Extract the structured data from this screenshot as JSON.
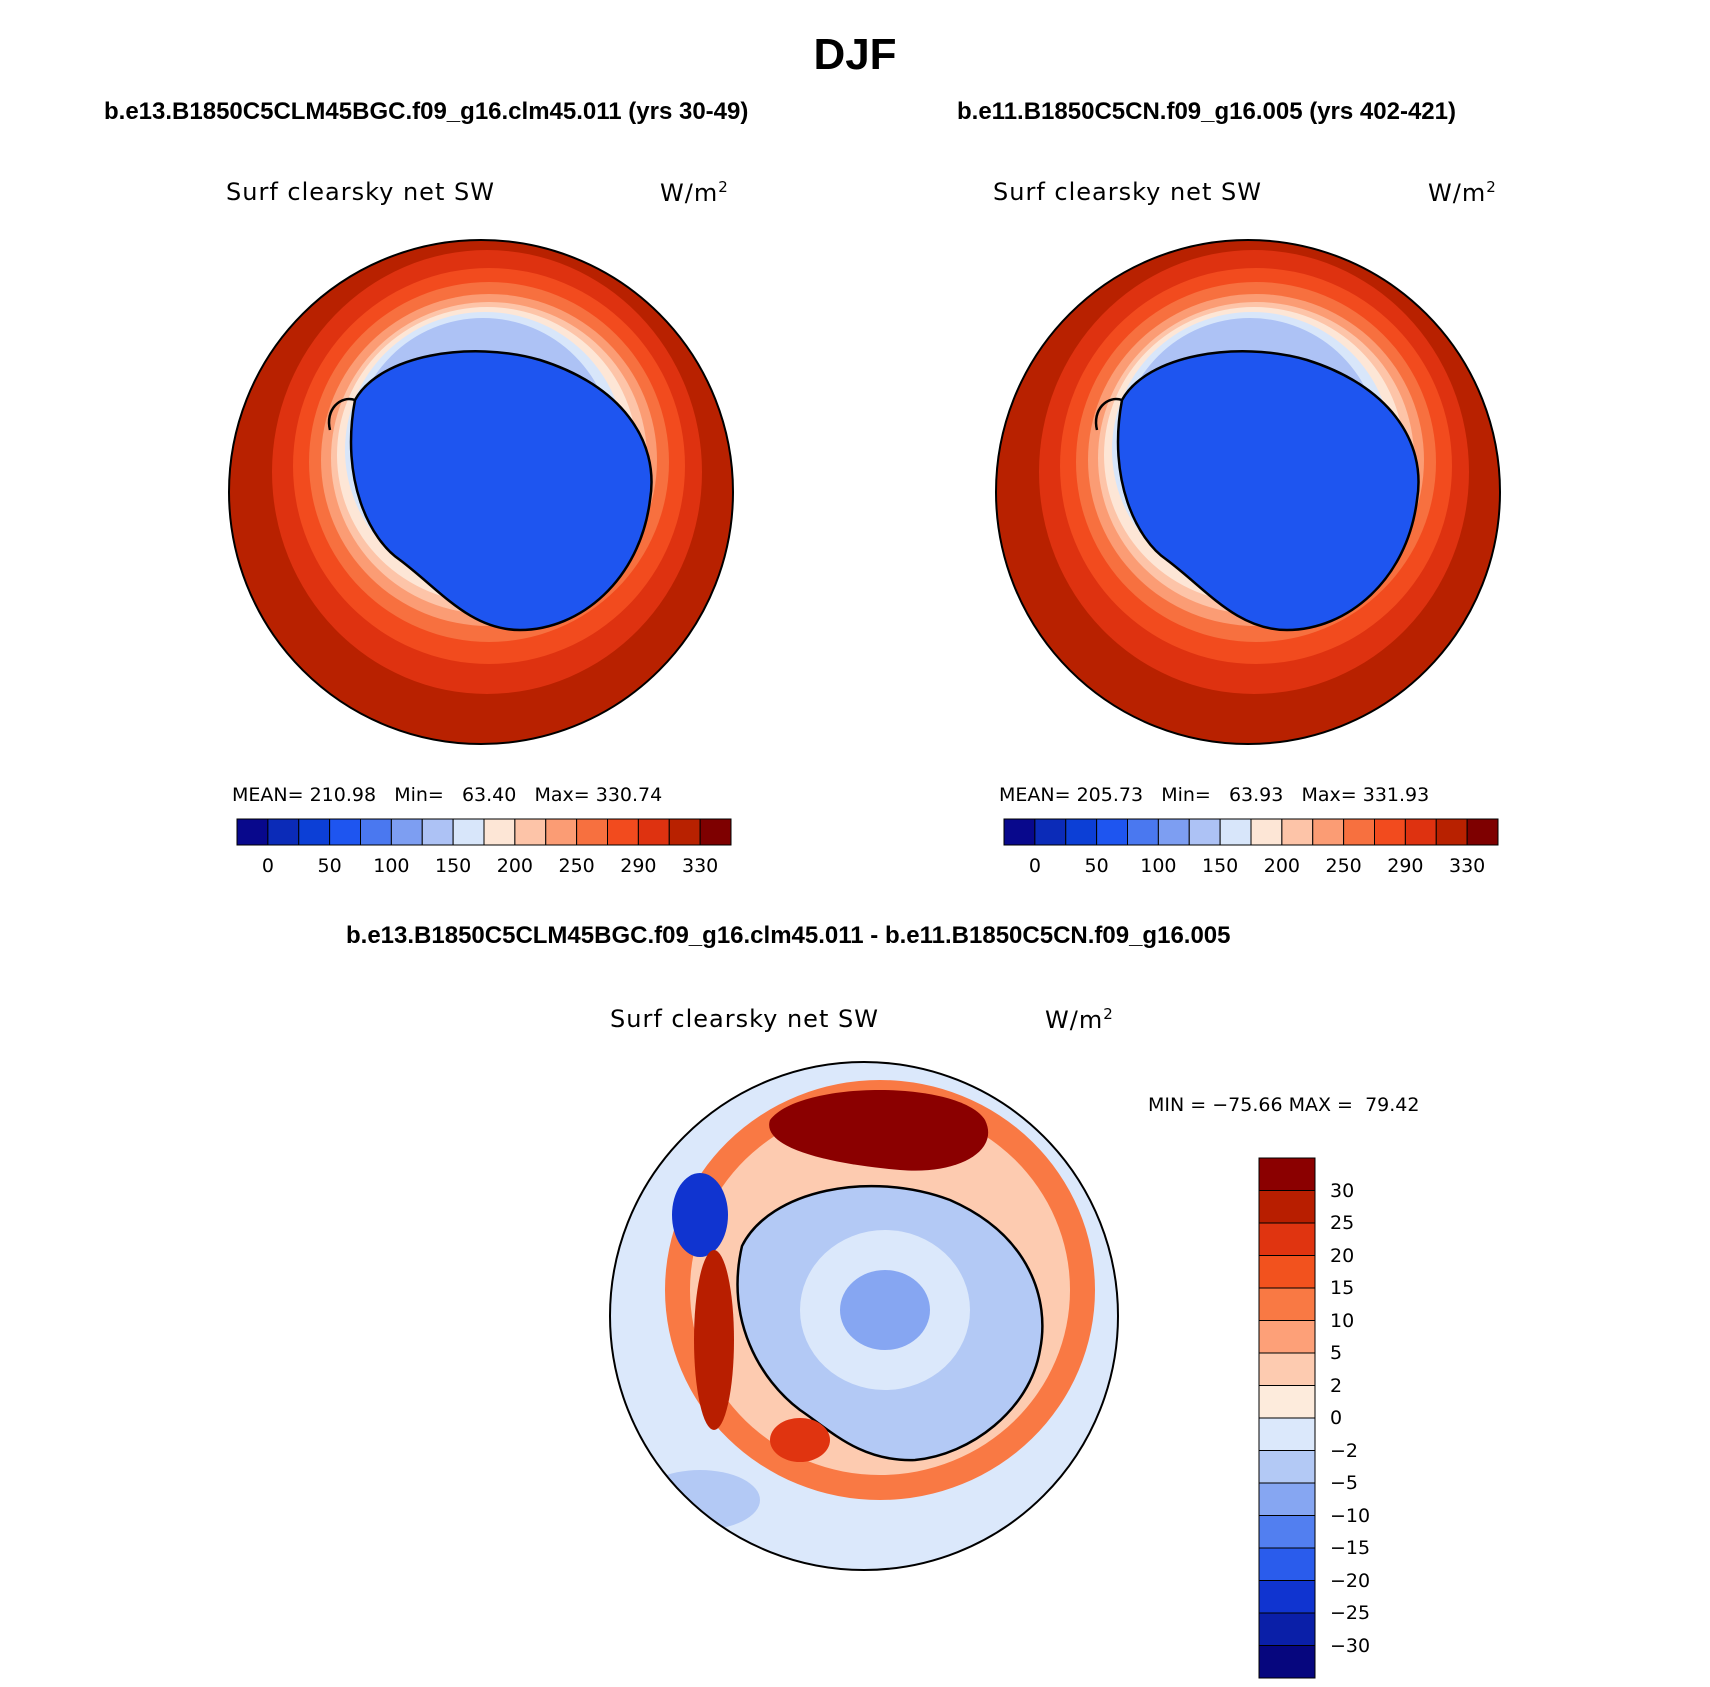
{
  "figure": {
    "title": "DJF",
    "case1_title": "b.e13.B1850C5CLM45BGC.f09_g16.clm45.011 (yrs 30-49)",
    "case2_title": "b.e11.B1850C5CN.f09_g16.005 (yrs 402-421)",
    "diff_title": "b.e13.B1850C5CLM45BGC.f09_g16.clm45.011 - b.e11.B1850C5CN.f09_g16.005"
  },
  "chart_data": [
    {
      "type": "heatmap",
      "projection": "south polar stereographic",
      "variable": "Surf clearsky net SW",
      "units_base": "W/m",
      "units_sup": "2",
      "stats": {
        "mean_label": "MEAN=",
        "mean": "210.98",
        "min_label": "Min=",
        "min": "63.40",
        "max_label": "Max=",
        "max": "330.74"
      },
      "colorbar_levels": [
        0,
        25,
        50,
        75,
        100,
        125,
        150,
        175,
        200,
        225,
        250,
        270,
        290,
        310,
        330
      ],
      "colorbar_tick_labels": [
        "0",
        "50",
        "100",
        "150",
        "200",
        "250",
        "290",
        "330"
      ],
      "colors": [
        "#08088c",
        "#0b2bb8",
        "#0c3fd6",
        "#1e55f0",
        "#4a78f0",
        "#7d9ef2",
        "#adc2f5",
        "#d8e6fa",
        "#fde6d6",
        "#fdc4a8",
        "#fb9c74",
        "#f7703f",
        "#f24b1e",
        "#de3210",
        "#b82100",
        "#7e0000"
      ]
    },
    {
      "type": "heatmap",
      "projection": "south polar stereographic",
      "variable": "Surf clearsky net SW",
      "units_base": "W/m",
      "units_sup": "2",
      "stats": {
        "mean_label": "MEAN=",
        "mean": "205.73",
        "min_label": "Min=",
        "min": "63.93",
        "max_label": "Max=",
        "max": "331.93"
      },
      "colorbar_levels": [
        0,
        25,
        50,
        75,
        100,
        125,
        150,
        175,
        200,
        225,
        250,
        270,
        290,
        310,
        330
      ],
      "colorbar_tick_labels": [
        "0",
        "50",
        "100",
        "150",
        "200",
        "250",
        "290",
        "330"
      ],
      "colors": [
        "#08088c",
        "#0b2bb8",
        "#0c3fd6",
        "#1e55f0",
        "#4a78f0",
        "#7d9ef2",
        "#adc2f5",
        "#d8e6fa",
        "#fde6d6",
        "#fdc4a8",
        "#fb9c74",
        "#f7703f",
        "#f24b1e",
        "#de3210",
        "#b82100",
        "#7e0000"
      ]
    },
    {
      "type": "heatmap",
      "projection": "south polar stereographic",
      "variable": "Surf clearsky net SW",
      "units_base": "W/m",
      "units_sup": "2",
      "stats": {
        "min_label": "MIN =",
        "min": "−75.66",
        "max_label": "MAX =",
        "max": "79.42"
      },
      "colorbar_levels": [
        30,
        25,
        20,
        15,
        10,
        5,
        2,
        0,
        -2,
        -5,
        -10,
        -15,
        -20,
        -25,
        -30
      ],
      "colorbar_tick_labels": [
        "30",
        "25",
        "20",
        "15",
        "10",
        "5",
        "2",
        "0",
        "−2",
        "−5",
        "−10",
        "−15",
        "−20",
        "−25",
        "−30"
      ],
      "colors": [
        "#8b0000",
        "#b81e00",
        "#e03410",
        "#f2521e",
        "#f97944",
        "#fda078",
        "#fdcbb0",
        "#fdebdc",
        "#dbe8fb",
        "#b3c9f5",
        "#86a6f2",
        "#527ff0",
        "#2a5cec",
        "#1034d0",
        "#0a1fa8",
        "#06067e"
      ]
    }
  ]
}
